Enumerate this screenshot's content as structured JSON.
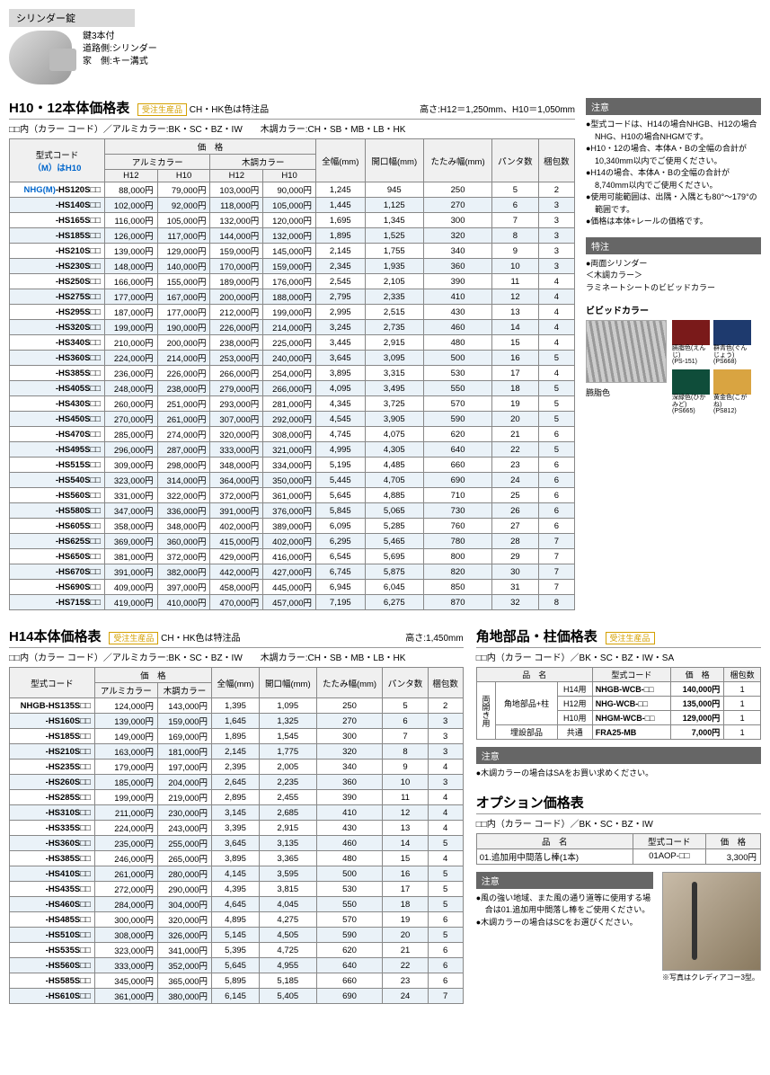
{
  "lock": {
    "title": "シリンダー錠",
    "line1": "鍵3本付",
    "line2": "道路側:シリンダー",
    "line3": "家　側:キー溝式"
  },
  "h1012": {
    "title": "H10・12本体価格表",
    "badge": "受注生産品",
    "chhk": "CH・HK色は特注品",
    "heights": "高さ:H12＝1,250mm、H10＝1,050mm",
    "colorNote": "□□内（カラー コード）／アルミカラー:BK・SC・BZ・IW　　木調カラー:CH・SB・MB・LB・HK",
    "modelHeader1": "型式コード",
    "modelHeader2": "（M）はH10",
    "priceHeader": "価　格",
    "alumiHeader": "アルミカラー",
    "woodHeader": "木調カラー",
    "h12": "H12",
    "h10": "H10",
    "col_zenhaba": "全幅(mm)",
    "col_kaikou": "開口幅(mm)",
    "col_tatami": "たたみ幅(mm)",
    "col_panta": "パンタ数",
    "col_konpo": "梱包数",
    "prefix": "NHG(M)",
    "rows": [
      {
        "m": "-HS120S□□",
        "a12": "88,000円",
        "a10": "79,000円",
        "w12": "103,000円",
        "w10": "90,000円",
        "zw": "1,245",
        "kw": "945",
        "tw": "250",
        "pn": "5",
        "kn": "2"
      },
      {
        "m": "-HS140S□□",
        "a12": "102,000円",
        "a10": "92,000円",
        "w12": "118,000円",
        "w10": "105,000円",
        "zw": "1,445",
        "kw": "1,125",
        "tw": "270",
        "pn": "6",
        "kn": "3"
      },
      {
        "m": "-HS165S□□",
        "a12": "116,000円",
        "a10": "105,000円",
        "w12": "132,000円",
        "w10": "120,000円",
        "zw": "1,695",
        "kw": "1,345",
        "tw": "300",
        "pn": "7",
        "kn": "3"
      },
      {
        "m": "-HS185S□□",
        "a12": "126,000円",
        "a10": "117,000円",
        "w12": "144,000円",
        "w10": "132,000円",
        "zw": "1,895",
        "kw": "1,525",
        "tw": "320",
        "pn": "8",
        "kn": "3"
      },
      {
        "m": "-HS210S□□",
        "a12": "139,000円",
        "a10": "129,000円",
        "w12": "159,000円",
        "w10": "145,000円",
        "zw": "2,145",
        "kw": "1,755",
        "tw": "340",
        "pn": "9",
        "kn": "3"
      },
      {
        "m": "-HS230S□□",
        "a12": "148,000円",
        "a10": "140,000円",
        "w12": "170,000円",
        "w10": "159,000円",
        "zw": "2,345",
        "kw": "1,935",
        "tw": "360",
        "pn": "10",
        "kn": "3"
      },
      {
        "m": "-HS250S□□",
        "a12": "166,000円",
        "a10": "155,000円",
        "w12": "189,000円",
        "w10": "176,000円",
        "zw": "2,545",
        "kw": "2,105",
        "tw": "390",
        "pn": "11",
        "kn": "4"
      },
      {
        "m": "-HS275S□□",
        "a12": "177,000円",
        "a10": "167,000円",
        "w12": "200,000円",
        "w10": "188,000円",
        "zw": "2,795",
        "kw": "2,335",
        "tw": "410",
        "pn": "12",
        "kn": "4"
      },
      {
        "m": "-HS295S□□",
        "a12": "187,000円",
        "a10": "177,000円",
        "w12": "212,000円",
        "w10": "199,000円",
        "zw": "2,995",
        "kw": "2,515",
        "tw": "430",
        "pn": "13",
        "kn": "4"
      },
      {
        "m": "-HS320S□□",
        "a12": "199,000円",
        "a10": "190,000円",
        "w12": "226,000円",
        "w10": "214,000円",
        "zw": "3,245",
        "kw": "2,735",
        "tw": "460",
        "pn": "14",
        "kn": "4"
      },
      {
        "m": "-HS340S□□",
        "a12": "210,000円",
        "a10": "200,000円",
        "w12": "238,000円",
        "w10": "225,000円",
        "zw": "3,445",
        "kw": "2,915",
        "tw": "480",
        "pn": "15",
        "kn": "4"
      },
      {
        "m": "-HS360S□□",
        "a12": "224,000円",
        "a10": "214,000円",
        "w12": "253,000円",
        "w10": "240,000円",
        "zw": "3,645",
        "kw": "3,095",
        "tw": "500",
        "pn": "16",
        "kn": "5"
      },
      {
        "m": "-HS385S□□",
        "a12": "236,000円",
        "a10": "226,000円",
        "w12": "266,000円",
        "w10": "254,000円",
        "zw": "3,895",
        "kw": "3,315",
        "tw": "530",
        "pn": "17",
        "kn": "4"
      },
      {
        "m": "-HS405S□□",
        "a12": "248,000円",
        "a10": "238,000円",
        "w12": "279,000円",
        "w10": "266,000円",
        "zw": "4,095",
        "kw": "3,495",
        "tw": "550",
        "pn": "18",
        "kn": "5"
      },
      {
        "m": "-HS430S□□",
        "a12": "260,000円",
        "a10": "251,000円",
        "w12": "293,000円",
        "w10": "281,000円",
        "zw": "4,345",
        "kw": "3,725",
        "tw": "570",
        "pn": "19",
        "kn": "5"
      },
      {
        "m": "-HS450S□□",
        "a12": "270,000円",
        "a10": "261,000円",
        "w12": "307,000円",
        "w10": "292,000円",
        "zw": "4,545",
        "kw": "3,905",
        "tw": "590",
        "pn": "20",
        "kn": "5"
      },
      {
        "m": "-HS470S□□",
        "a12": "285,000円",
        "a10": "274,000円",
        "w12": "320,000円",
        "w10": "308,000円",
        "zw": "4,745",
        "kw": "4,075",
        "tw": "620",
        "pn": "21",
        "kn": "6"
      },
      {
        "m": "-HS495S□□",
        "a12": "296,000円",
        "a10": "287,000円",
        "w12": "333,000円",
        "w10": "321,000円",
        "zw": "4,995",
        "kw": "4,305",
        "tw": "640",
        "pn": "22",
        "kn": "5"
      },
      {
        "m": "-HS515S□□",
        "a12": "309,000円",
        "a10": "298,000円",
        "w12": "348,000円",
        "w10": "334,000円",
        "zw": "5,195",
        "kw": "4,485",
        "tw": "660",
        "pn": "23",
        "kn": "6"
      },
      {
        "m": "-HS540S□□",
        "a12": "323,000円",
        "a10": "314,000円",
        "w12": "364,000円",
        "w10": "350,000円",
        "zw": "5,445",
        "kw": "4,705",
        "tw": "690",
        "pn": "24",
        "kn": "6"
      },
      {
        "m": "-HS560S□□",
        "a12": "331,000円",
        "a10": "322,000円",
        "w12": "372,000円",
        "w10": "361,000円",
        "zw": "5,645",
        "kw": "4,885",
        "tw": "710",
        "pn": "25",
        "kn": "6"
      },
      {
        "m": "-HS580S□□",
        "a12": "347,000円",
        "a10": "336,000円",
        "w12": "391,000円",
        "w10": "376,000円",
        "zw": "5,845",
        "kw": "5,065",
        "tw": "730",
        "pn": "26",
        "kn": "6"
      },
      {
        "m": "-HS605S□□",
        "a12": "358,000円",
        "a10": "348,000円",
        "w12": "402,000円",
        "w10": "389,000円",
        "zw": "6,095",
        "kw": "5,285",
        "tw": "760",
        "pn": "27",
        "kn": "6"
      },
      {
        "m": "-HS625S□□",
        "a12": "369,000円",
        "a10": "360,000円",
        "w12": "415,000円",
        "w10": "402,000円",
        "zw": "6,295",
        "kw": "5,465",
        "tw": "780",
        "pn": "28",
        "kn": "7"
      },
      {
        "m": "-HS650S□□",
        "a12": "381,000円",
        "a10": "372,000円",
        "w12": "429,000円",
        "w10": "416,000円",
        "zw": "6,545",
        "kw": "5,695",
        "tw": "800",
        "pn": "29",
        "kn": "7"
      },
      {
        "m": "-HS670S□□",
        "a12": "391,000円",
        "a10": "382,000円",
        "w12": "442,000円",
        "w10": "427,000円",
        "zw": "6,745",
        "kw": "5,875",
        "tw": "820",
        "pn": "30",
        "kn": "7"
      },
      {
        "m": "-HS690S□□",
        "a12": "409,000円",
        "a10": "397,000円",
        "w12": "458,000円",
        "w10": "445,000円",
        "zw": "6,945",
        "kw": "6,045",
        "tw": "850",
        "pn": "31",
        "kn": "7"
      },
      {
        "m": "-HS715S□□",
        "a12": "419,000円",
        "a10": "410,000円",
        "w12": "470,000円",
        "w10": "457,000円",
        "zw": "7,195",
        "kw": "6,275",
        "tw": "870",
        "pn": "32",
        "kn": "8"
      }
    ]
  },
  "notice": {
    "title": "注意",
    "items": [
      "●型式コードは、H14の場合NHGB、H12の場合NHG、H10の場合NHGMです。",
      "●H10・12の場合、本体A・Bの全幅の合計が10,340mm以内でご使用ください。",
      "●H14の場合、本体A・Bの全幅の合計が8,740mm以内でご使用ください。",
      "●使用可能範囲は、出隅・入隅とも80°～179°の範囲です。",
      "●価格は本体+レールの価格です。"
    ]
  },
  "tokuchu": {
    "title": "特注",
    "items": [
      "●両面シリンダー",
      "＜木調カラー＞",
      "ラミネートシートのビビッドカラー"
    ]
  },
  "vivid": {
    "title": "ビビッドカラー",
    "fenceLabel": "臙脂色",
    "swatches": [
      {
        "name": "臙脂色(えんじ)",
        "code": "(PS-151)",
        "color": "#7a1a1a"
      },
      {
        "name": "群青色(ぐんじょう)",
        "code": "(PS668)",
        "color": "#1e3a6e"
      },
      {
        "name": "深緑色(ひかみど)",
        "code": "(PS665)",
        "color": "#0f4d3a"
      },
      {
        "name": "黄金色(こがね)",
        "code": "(PS812)",
        "color": "#d9a441"
      }
    ]
  },
  "h14": {
    "title": "H14本体価格表",
    "badge": "受注生産品",
    "chhk": "CH・HK色は特注品",
    "height": "高さ:1,450mm",
    "colorNote": "□□内（カラー コード）／アルミカラー:BK・SC・BZ・IW　　木調カラー:CH・SB・MB・LB・HK",
    "modelHeader": "型式コード",
    "priceHeader": "価　格",
    "alumiHeader": "アルミカラー",
    "woodHeader": "木調カラー",
    "prefix": "NHGB",
    "rows": [
      {
        "m": "-HS135S□□",
        "a": "124,000円",
        "w": "143,000円",
        "zw": "1,395",
        "kw": "1,095",
        "tw": "250",
        "pn": "5",
        "kn": "2"
      },
      {
        "m": "-HS160S□□",
        "a": "139,000円",
        "w": "159,000円",
        "zw": "1,645",
        "kw": "1,325",
        "tw": "270",
        "pn": "6",
        "kn": "3"
      },
      {
        "m": "-HS185S□□",
        "a": "149,000円",
        "w": "169,000円",
        "zw": "1,895",
        "kw": "1,545",
        "tw": "300",
        "pn": "7",
        "kn": "3"
      },
      {
        "m": "-HS210S□□",
        "a": "163,000円",
        "w": "181,000円",
        "zw": "2,145",
        "kw": "1,775",
        "tw": "320",
        "pn": "8",
        "kn": "3"
      },
      {
        "m": "-HS235S□□",
        "a": "179,000円",
        "w": "197,000円",
        "zw": "2,395",
        "kw": "2,005",
        "tw": "340",
        "pn": "9",
        "kn": "4"
      },
      {
        "m": "-HS260S□□",
        "a": "185,000円",
        "w": "204,000円",
        "zw": "2,645",
        "kw": "2,235",
        "tw": "360",
        "pn": "10",
        "kn": "3"
      },
      {
        "m": "-HS285S□□",
        "a": "199,000円",
        "w": "219,000円",
        "zw": "2,895",
        "kw": "2,455",
        "tw": "390",
        "pn": "11",
        "kn": "4"
      },
      {
        "m": "-HS310S□□",
        "a": "211,000円",
        "w": "230,000円",
        "zw": "3,145",
        "kw": "2,685",
        "tw": "410",
        "pn": "12",
        "kn": "4"
      },
      {
        "m": "-HS335S□□",
        "a": "224,000円",
        "w": "243,000円",
        "zw": "3,395",
        "kw": "2,915",
        "tw": "430",
        "pn": "13",
        "kn": "4"
      },
      {
        "m": "-HS360S□□",
        "a": "235,000円",
        "w": "255,000円",
        "zw": "3,645",
        "kw": "3,135",
        "tw": "460",
        "pn": "14",
        "kn": "5"
      },
      {
        "m": "-HS385S□□",
        "a": "246,000円",
        "w": "265,000円",
        "zw": "3,895",
        "kw": "3,365",
        "tw": "480",
        "pn": "15",
        "kn": "4"
      },
      {
        "m": "-HS410S□□",
        "a": "261,000円",
        "w": "280,000円",
        "zw": "4,145",
        "kw": "3,595",
        "tw": "500",
        "pn": "16",
        "kn": "5"
      },
      {
        "m": "-HS435S□□",
        "a": "272,000円",
        "w": "290,000円",
        "zw": "4,395",
        "kw": "3,815",
        "tw": "530",
        "pn": "17",
        "kn": "5"
      },
      {
        "m": "-HS460S□□",
        "a": "284,000円",
        "w": "304,000円",
        "zw": "4,645",
        "kw": "4,045",
        "tw": "550",
        "pn": "18",
        "kn": "5"
      },
      {
        "m": "-HS485S□□",
        "a": "300,000円",
        "w": "320,000円",
        "zw": "4,895",
        "kw": "4,275",
        "tw": "570",
        "pn": "19",
        "kn": "6"
      },
      {
        "m": "-HS510S□□",
        "a": "308,000円",
        "w": "326,000円",
        "zw": "5,145",
        "kw": "4,505",
        "tw": "590",
        "pn": "20",
        "kn": "5"
      },
      {
        "m": "-HS535S□□",
        "a": "323,000円",
        "w": "341,000円",
        "zw": "5,395",
        "kw": "4,725",
        "tw": "620",
        "pn": "21",
        "kn": "6"
      },
      {
        "m": "-HS560S□□",
        "a": "333,000円",
        "w": "352,000円",
        "zw": "5,645",
        "kw": "4,955",
        "tw": "640",
        "pn": "22",
        "kn": "6"
      },
      {
        "m": "-HS585S□□",
        "a": "345,000円",
        "w": "365,000円",
        "zw": "5,895",
        "kw": "5,185",
        "tw": "660",
        "pn": "23",
        "kn": "6"
      },
      {
        "m": "-HS610S□□",
        "a": "361,000円",
        "w": "380,000円",
        "zw": "6,145",
        "kw": "5,405",
        "tw": "690",
        "pn": "24",
        "kn": "7"
      }
    ]
  },
  "kakuchi": {
    "title": "角地部品・柱価格表",
    "badge": "受注生産品",
    "colorNote": "□□内（カラー コード）／BK・SC・BZ・IW・SA",
    "col_hinmei": "品　名",
    "col_model": "型式コード",
    "col_price": "価　格",
    "col_konpo": "梱包数",
    "groupLabel": "両開き用",
    "rows": [
      {
        "g": "角地部品+柱",
        "h": "H14用",
        "m": "NHGB-WCB-□□",
        "p": "140,000円",
        "k": "1"
      },
      {
        "g": "",
        "h": "H12用",
        "m": "NHG-WCB-□□",
        "p": "135,000円",
        "k": "1"
      },
      {
        "g": "",
        "h": "H10用",
        "m": "NHGM-WCB-□□",
        "p": "129,000円",
        "k": "1"
      },
      {
        "g": "埋設部品",
        "h": "共通",
        "m": "FRA25-MB",
        "p": "7,000円",
        "k": "1"
      }
    ],
    "noticeTitle": "注意",
    "notice": "●木調カラーの場合はSAをお買い求めください。"
  },
  "option": {
    "title": "オプション価格表",
    "colorNote": "□□内（カラー コード）／BK・SC・BZ・IW",
    "col_hinmei": "品　名",
    "col_model": "型式コード",
    "col_price": "価　格",
    "row": {
      "name": "01.追加用中間落し棒(1本)",
      "model": "01AOP-□□",
      "price": "3,300円"
    },
    "noticeTitle": "注意",
    "notices": [
      "●風の強い地域、また風の通り道等に使用する場合は01.追加用中間落し棒をご使用ください。",
      "●木調カラーの場合はSCをお選びください。"
    ],
    "caption": "※写真はクレディアコー3型。"
  }
}
